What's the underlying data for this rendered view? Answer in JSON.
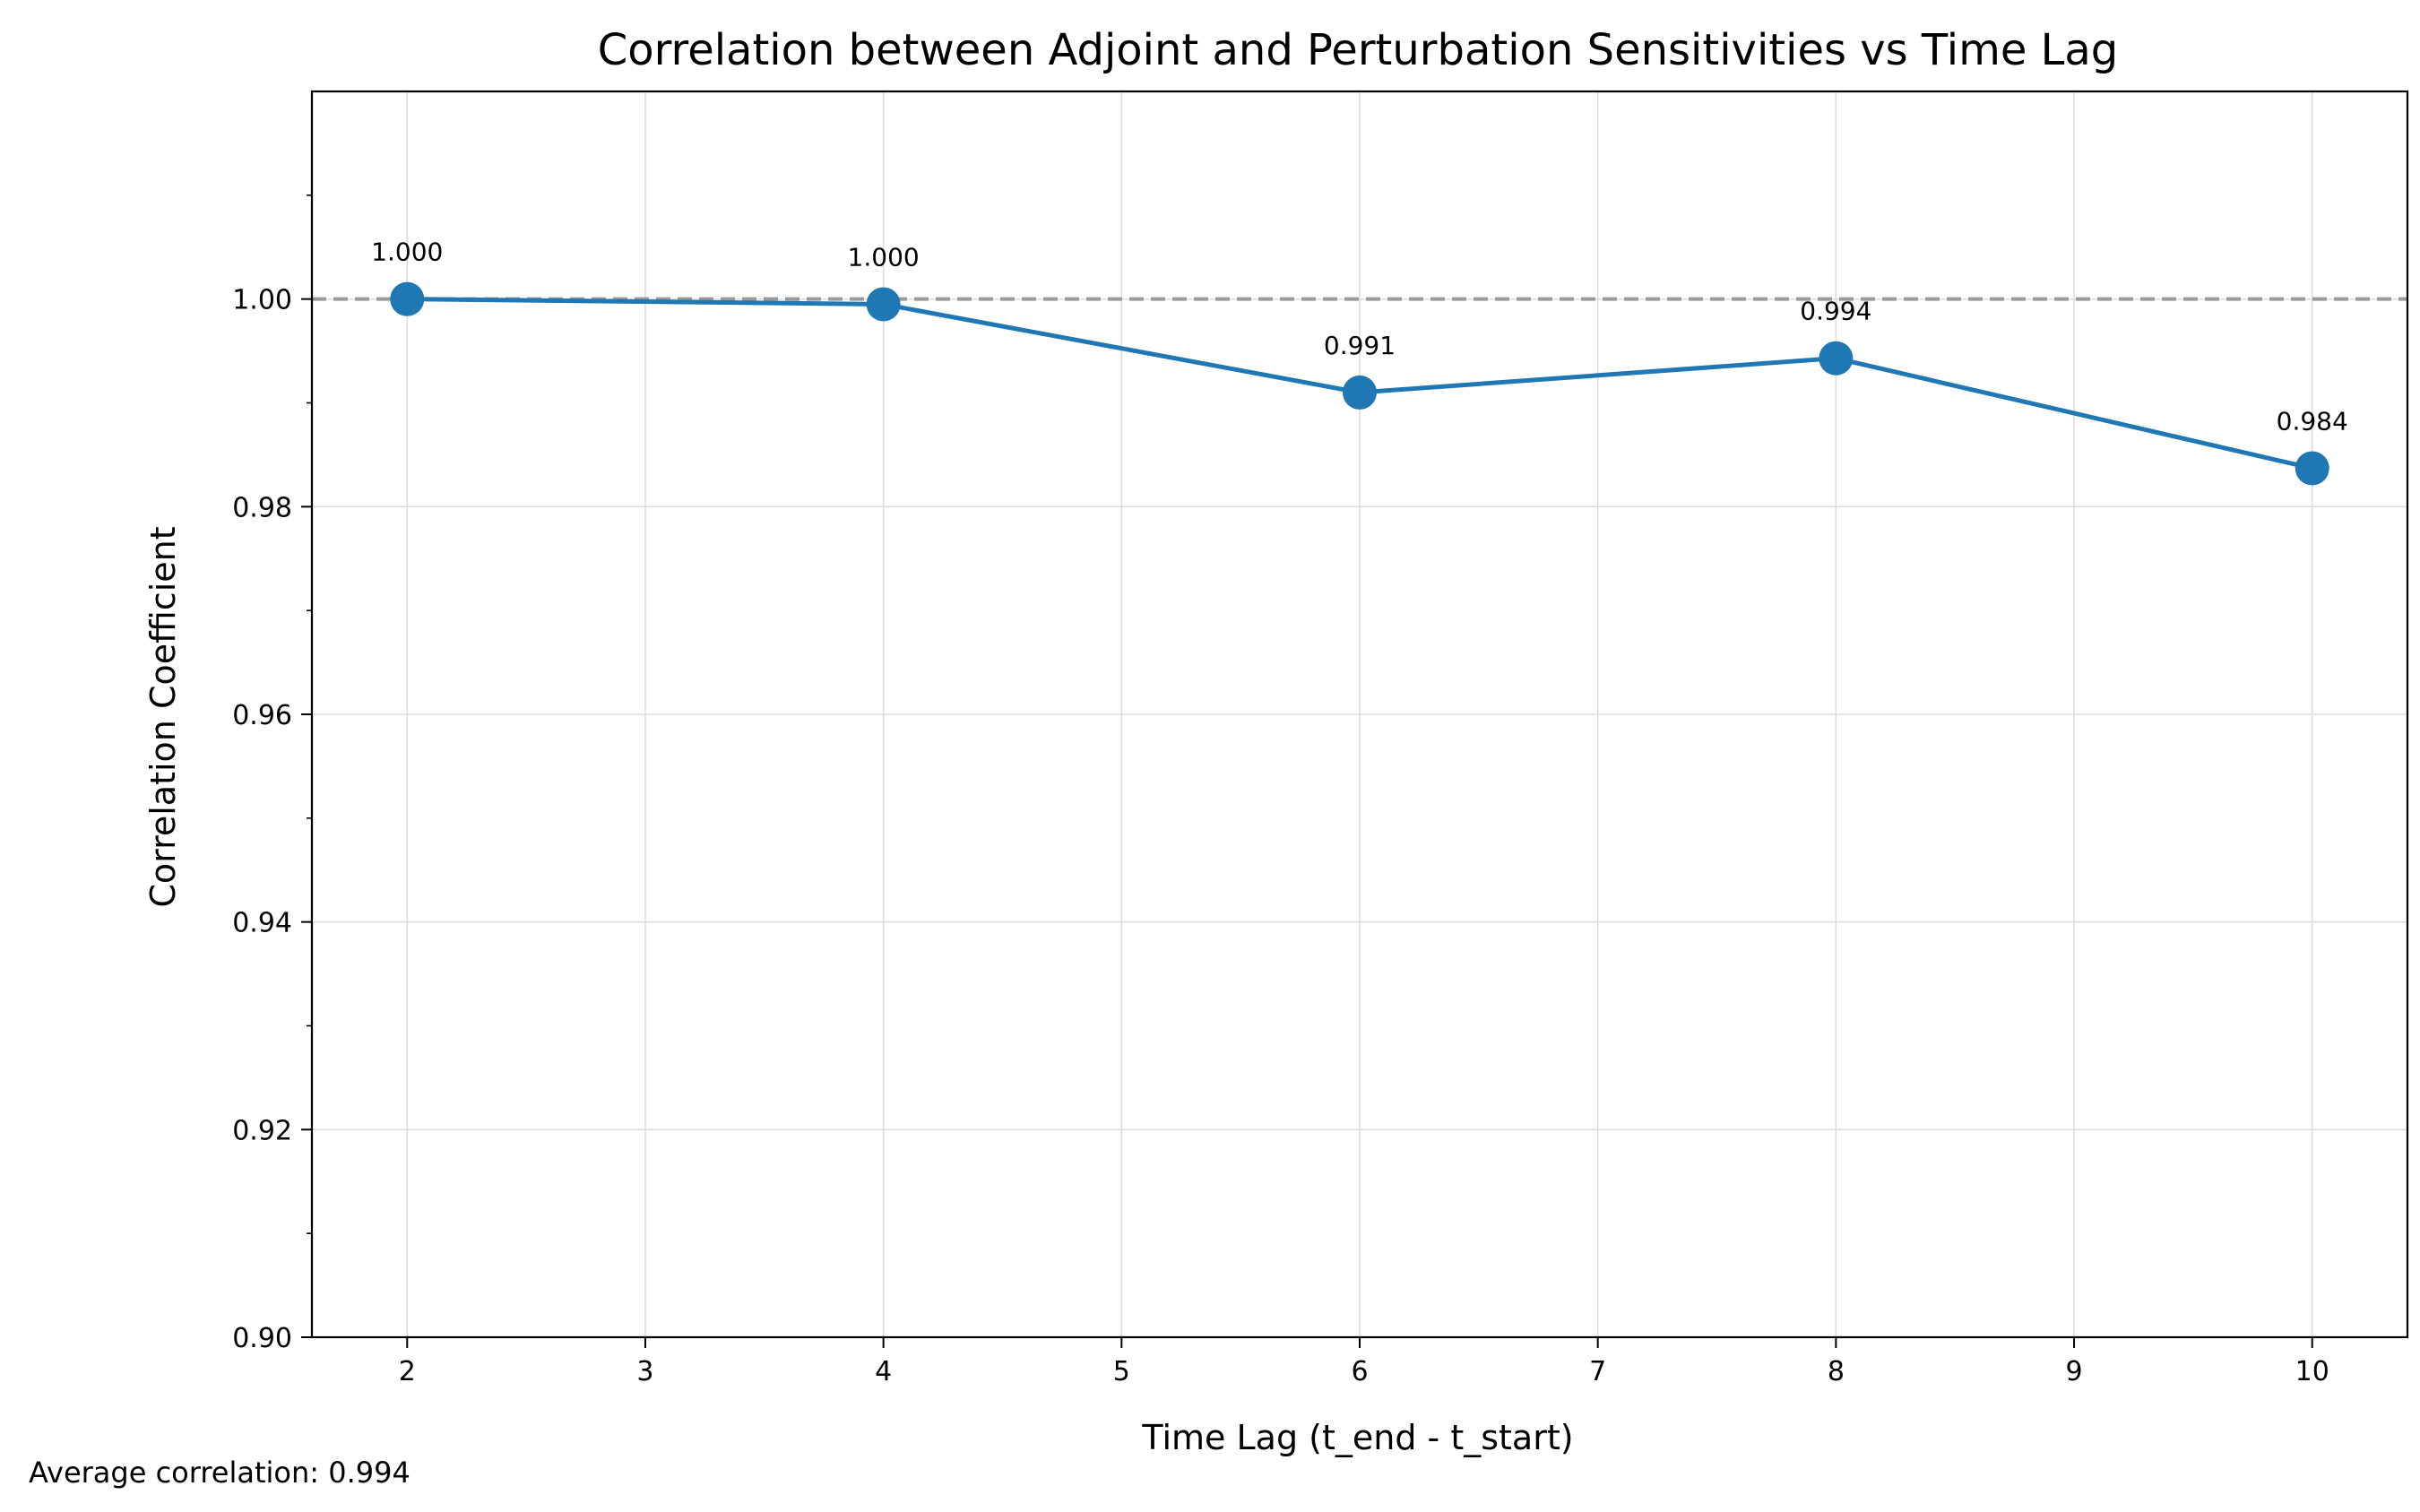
{
  "chart_data": {
    "type": "line",
    "title": "Correlation between Adjoint and Perturbation Sensitivities vs Time Lag",
    "xlabel": "Time Lag (t_end - t_start)",
    "ylabel": "Correlation Coefficient",
    "x": [
      2,
      4,
      6,
      8,
      10
    ],
    "series": [
      {
        "values": [
          1.0,
          0.9995,
          0.991,
          0.9943,
          0.9837
        ]
      }
    ],
    "point_labels": [
      "1.000",
      "1.000",
      "0.991",
      "0.994",
      "0.984"
    ],
    "xlim": [
      1.6,
      10.4
    ],
    "ylim": [
      0.9,
      1.02
    ],
    "x_ticks": [
      2,
      3,
      4,
      5,
      6,
      7,
      8,
      9,
      10
    ],
    "x_tick_labels": [
      "2",
      "3",
      "4",
      "5",
      "6",
      "7",
      "8",
      "9",
      "10"
    ],
    "y_ticks": [
      0.9,
      0.92,
      0.94,
      0.96,
      0.98,
      1.0
    ],
    "y_tick_labels": [
      "0.90",
      "0.92",
      "0.94",
      "0.96",
      "0.98",
      "1.00"
    ],
    "y_minor_ticks": [
      0.91,
      0.93,
      0.95,
      0.97,
      0.99,
      1.01
    ],
    "reference_line": {
      "y": 1.0,
      "style": "dashed",
      "color": "#999999"
    },
    "grid": true,
    "series_color": "#1f77b4",
    "footnote": "Average correlation: 0.994"
  }
}
